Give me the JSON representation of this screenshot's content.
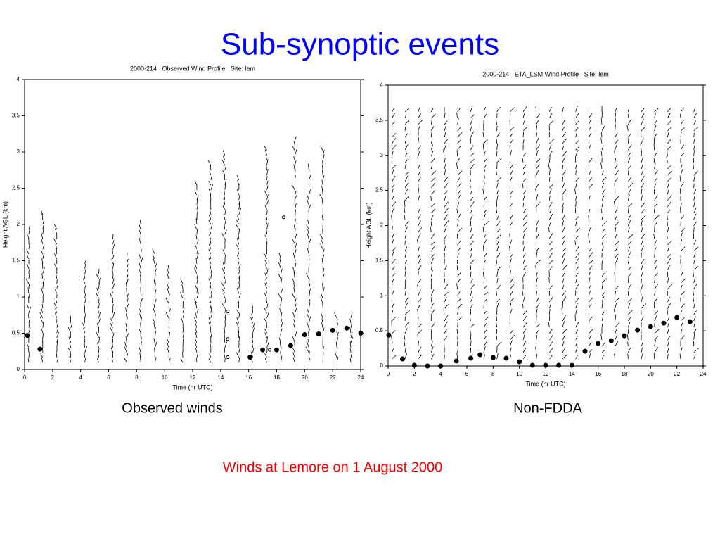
{
  "title": "Sub-synoptic events",
  "captions": [
    "Observed winds",
    "Non-FDDA"
  ],
  "footnote": "Winds at Lemore on 1 August 2000",
  "chart_data": [
    {
      "type": "scatter",
      "title": "2000-214   Observed Wind Profile   Site: lem",
      "x_label": "Time (hr UTC)",
      "y_label": "Height AGL (km)",
      "xlim": [
        0,
        24
      ],
      "ylim": [
        0,
        4
      ],
      "xticks": [
        0,
        2,
        4,
        6,
        8,
        10,
        12,
        14,
        16,
        18,
        20,
        22,
        24
      ],
      "yticks": [
        0,
        0.5,
        1,
        1.5,
        2,
        2.5,
        3,
        3.5,
        4
      ],
      "series": [
        {
          "color": "#000000",
          "marker": "filled",
          "x": [
            0.2,
            1.1,
            16.1,
            17,
            18,
            19,
            20,
            21,
            22,
            23,
            24
          ],
          "values": [
            0.47,
            0.28,
            0.17,
            0.27,
            0.27,
            0.33,
            0.48,
            0.49,
            0.54,
            0.57,
            0.5
          ]
        },
        {
          "color": "#000000",
          "marker": "open",
          "x": [
            14.5,
            14.5,
            14.5,
            17.5,
            18.5
          ],
          "values": [
            0.17,
            0.42,
            0.8,
            0.27,
            2.1
          ]
        }
      ]
    },
    {
      "type": "scatter",
      "title": "2000-214   ETA_LSM Wind Profile   Site: lem",
      "x_label": "Time (hr UTC)",
      "y_label": "Height AGL (km)",
      "xlim": [
        0,
        24
      ],
      "ylim": [
        0,
        4
      ],
      "xticks": [
        0,
        2,
        4,
        6,
        8,
        10,
        12,
        14,
        16,
        18,
        20,
        22,
        24
      ],
      "yticks": [
        0,
        0.5,
        1,
        1.5,
        2,
        2.5,
        3,
        3.5,
        4
      ],
      "series": [
        {
          "color": "#000000",
          "marker": "filled",
          "x": [
            0.05,
            1.1,
            2,
            3,
            4,
            5.2,
            6.3,
            7,
            8,
            9,
            10,
            11,
            12,
            13,
            14,
            15,
            16,
            17,
            18,
            19,
            20,
            21,
            22,
            23
          ],
          "values": [
            0.44,
            0.1,
            0.01,
            0,
            0,
            0.07,
            0.11,
            0.16,
            0.12,
            0.11,
            0.06,
            0.01,
            0.01,
            0.01,
            0.01,
            0.21,
            0.32,
            0.36,
            0.43,
            0.51,
            0.56,
            0.61,
            0.69,
            0.63
          ]
        }
      ]
    }
  ]
}
